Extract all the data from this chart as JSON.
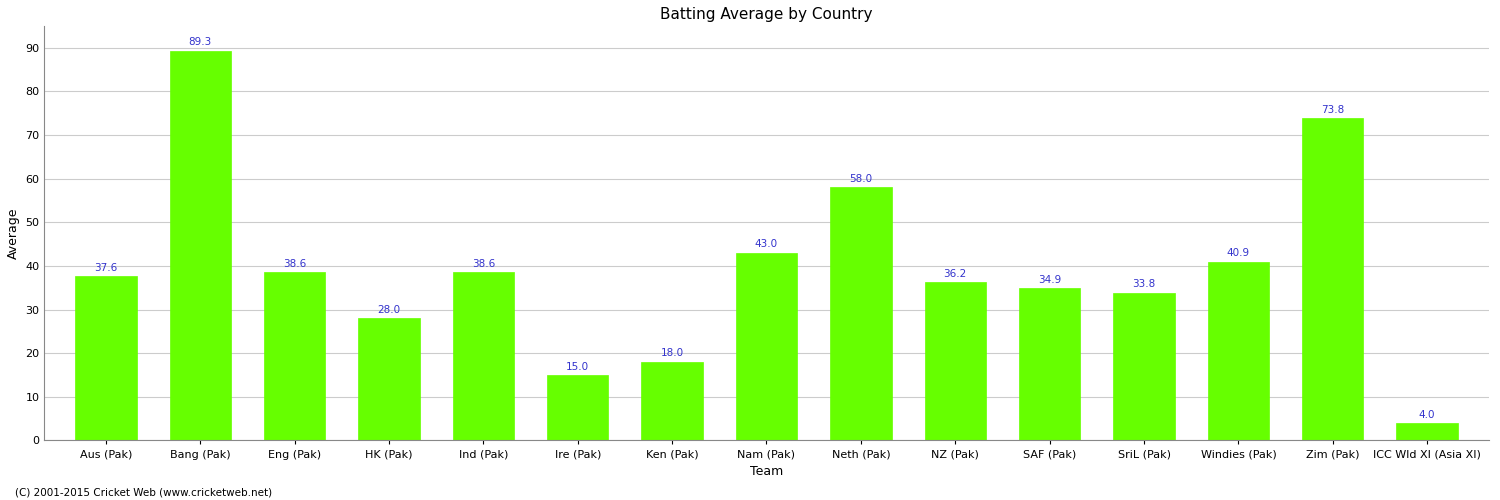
{
  "categories": [
    "Aus (Pak)",
    "Bang (Pak)",
    "Eng (Pak)",
    "HK (Pak)",
    "Ind (Pak)",
    "Ire (Pak)",
    "Ken (Pak)",
    "Nam (Pak)",
    "Neth (Pak)",
    "NZ (Pak)",
    "SAF (Pak)",
    "SriL (Pak)",
    "Windies (Pak)",
    "Zim (Pak)",
    "ICC Wld XI (Asia XI)"
  ],
  "values": [
    37.6,
    89.3,
    38.6,
    28.0,
    38.6,
    15.0,
    18.0,
    43.0,
    58.0,
    36.2,
    34.9,
    33.8,
    40.9,
    73.8,
    4.0
  ],
  "bar_color": "#66ff00",
  "bar_edge_color": "#66ff00",
  "label_color": "#3333cc",
  "title": "Batting Average by Country",
  "ylabel": "Average",
  "xlabel": "Team",
  "ylim": [
    0,
    95
  ],
  "yticks": [
    0,
    10,
    20,
    30,
    40,
    50,
    60,
    70,
    80,
    90
  ],
  "grid_color": "#cccccc",
  "bg_color": "#ffffff",
  "footer": "(C) 2001-2015 Cricket Web (www.cricketweb.net)",
  "title_fontsize": 11,
  "axis_label_fontsize": 9,
  "tick_label_fontsize": 8,
  "bar_label_fontsize": 7.5
}
